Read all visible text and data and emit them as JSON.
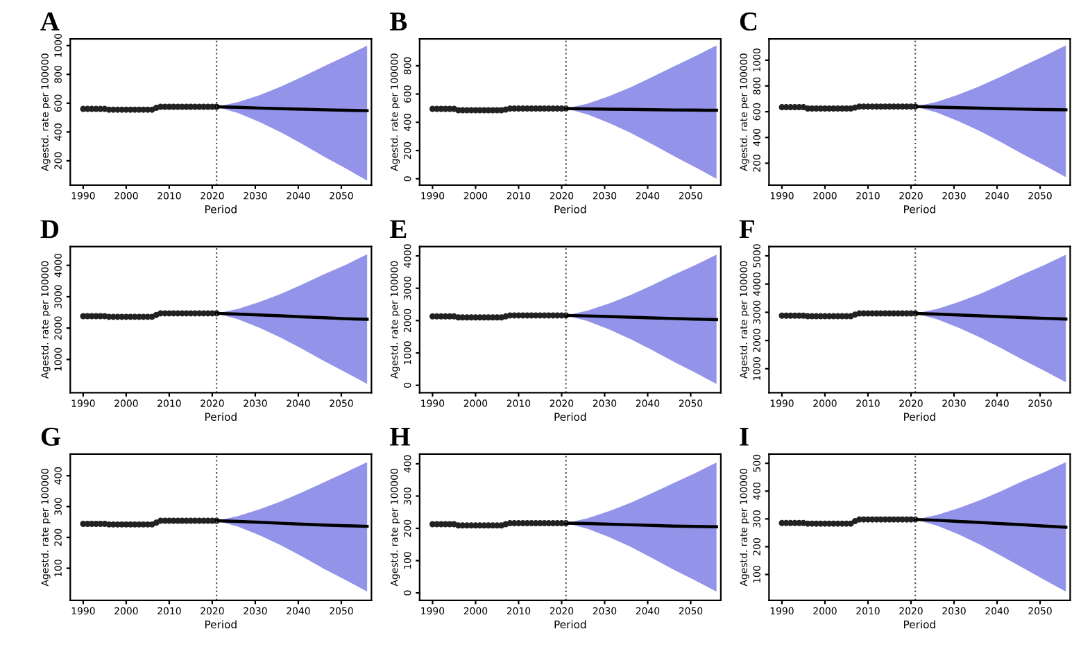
{
  "chart_data": [
    {
      "type": "line",
      "title": "A",
      "xlabel": "Period",
      "ylabel": "Agestd. rate per 100000",
      "xlim": [
        1987,
        2057
      ],
      "xticks": [
        1990,
        2000,
        2010,
        2020,
        2030,
        2040,
        2050
      ],
      "ylim": [
        31,
        1046
      ],
      "yticks": [
        200,
        400,
        600,
        800,
        1000
      ],
      "grid": false,
      "ref_lines": [
        {
          "axis": "x",
          "value": 2021,
          "line_style": "dotted",
          "color": "#555555"
        }
      ],
      "series": [
        {
          "type": "scatter",
          "marker": "circle",
          "color": "#222222",
          "x": [
            1990,
            1991,
            1992,
            1993,
            1994,
            1995,
            1996,
            1997,
            1998,
            1999,
            2000,
            2001,
            2002,
            2003,
            2004,
            2005,
            2006,
            2007,
            2008,
            2009,
            2010,
            2011,
            2012,
            2013,
            2014,
            2015,
            2016,
            2017,
            2018,
            2019,
            2020,
            2021
          ],
          "values": [
            560,
            560,
            560,
            560,
            560,
            560,
            555,
            555,
            555,
            555,
            555,
            555,
            555,
            555,
            555,
            555,
            555,
            568,
            575,
            575,
            575,
            575,
            575,
            575,
            575,
            575,
            575,
            575,
            575,
            575,
            575,
            575
          ]
        },
        {
          "marker": "none",
          "color": "#000000",
          "x": [
            2021,
            2026,
            2031,
            2036,
            2041,
            2046,
            2051,
            2056
          ],
          "values": [
            575,
            571,
            566,
            562,
            558,
            554,
            551,
            548
          ],
          "upper": [
            575,
            607,
            656,
            716,
            784,
            857,
            926,
            1000
          ],
          "lower": [
            575,
            532,
            469,
            397,
            315,
            228,
            148,
            62
          ]
        }
      ]
    },
    {
      "type": "line",
      "title": "B",
      "xlabel": "Period",
      "ylabel": "Agestd. rate per 100000",
      "xlim": [
        1987,
        2057
      ],
      "xticks": [
        1990,
        2000,
        2010,
        2020,
        2030,
        2040,
        2050
      ],
      "ylim": [
        -45,
        990
      ],
      "yticks": [
        0,
        200,
        400,
        600,
        800
      ],
      "grid": false,
      "ref_lines": [
        {
          "axis": "x",
          "value": 2021,
          "line_style": "dotted",
          "color": "#555555"
        }
      ],
      "series": [
        {
          "type": "scatter",
          "marker": "circle",
          "color": "#222222",
          "x": [
            1990,
            1991,
            1992,
            1993,
            1994,
            1995,
            1996,
            1997,
            1998,
            1999,
            2000,
            2001,
            2002,
            2003,
            2004,
            2005,
            2006,
            2007,
            2008,
            2009,
            2010,
            2011,
            2012,
            2013,
            2014,
            2015,
            2016,
            2017,
            2018,
            2019,
            2020,
            2021
          ],
          "values": [
            495,
            495,
            495,
            495,
            495,
            495,
            485,
            485,
            485,
            485,
            485,
            485,
            485,
            485,
            485,
            485,
            485,
            490,
            497,
            497,
            497,
            497,
            497,
            497,
            497,
            497,
            497,
            497,
            497,
            497,
            497,
            497
          ]
        },
        {
          "marker": "none",
          "color": "#000000",
          "x": [
            2021,
            2026,
            2031,
            2036,
            2041,
            2046,
            2051,
            2056
          ],
          "values": [
            497,
            495,
            493,
            491,
            489,
            487,
            486,
            485
          ],
          "upper": [
            497,
            532,
            585,
            647,
            719,
            795,
            867,
            944
          ],
          "lower": [
            497,
            456,
            396,
            326,
            246,
            162,
            83,
            0
          ]
        }
      ]
    },
    {
      "type": "line",
      "title": "C",
      "xlabel": "Period",
      "ylabel": "Agestd. rate per 100000",
      "xlim": [
        1987,
        2057
      ],
      "xticks": [
        1990,
        2000,
        2010,
        2020,
        2030,
        2040,
        2050
      ],
      "ylim": [
        30,
        1165
      ],
      "yticks": [
        200,
        400,
        600,
        800,
        1000
      ],
      "grid": false,
      "ref_lines": [
        {
          "axis": "x",
          "value": 2021,
          "line_style": "dotted",
          "color": "#555555"
        }
      ],
      "series": [
        {
          "type": "scatter",
          "marker": "circle",
          "color": "#222222",
          "x": [
            1990,
            1991,
            1992,
            1993,
            1994,
            1995,
            1996,
            1997,
            1998,
            1999,
            2000,
            2001,
            2002,
            2003,
            2004,
            2005,
            2006,
            2007,
            2008,
            2009,
            2010,
            2011,
            2012,
            2013,
            2014,
            2015,
            2016,
            2017,
            2018,
            2019,
            2020,
            2021
          ],
          "values": [
            635,
            635,
            635,
            635,
            635,
            635,
            625,
            625,
            625,
            625,
            625,
            625,
            625,
            625,
            625,
            625,
            625,
            632,
            640,
            640,
            640,
            640,
            640,
            640,
            640,
            640,
            640,
            640,
            640,
            640,
            640,
            640
          ]
        },
        {
          "marker": "none",
          "color": "#000000",
          "x": [
            2021,
            2026,
            2031,
            2036,
            2041,
            2046,
            2051,
            2056
          ],
          "values": [
            640,
            636,
            632,
            628,
            624,
            620,
            617,
            615
          ],
          "upper": [
            640,
            676,
            732,
            798,
            874,
            955,
            1032,
            1115
          ],
          "lower": [
            640,
            594,
            527,
            450,
            362,
            270,
            183,
            92
          ]
        }
      ]
    },
    {
      "type": "line",
      "title": "D",
      "xlabel": "Period",
      "ylabel": "Agestd. rate per 100000",
      "xlim": [
        1987,
        2057
      ],
      "xticks": [
        1990,
        2000,
        2010,
        2020,
        2030,
        2040,
        2050
      ],
      "ylim": [
        -60,
        4600
      ],
      "yticks": [
        1000,
        2000,
        3000,
        4000
      ],
      "grid": false,
      "ref_lines": [
        {
          "axis": "x",
          "value": 2021,
          "line_style": "dotted",
          "color": "#555555"
        }
      ],
      "series": [
        {
          "type": "scatter",
          "marker": "circle",
          "color": "#222222",
          "x": [
            1990,
            1991,
            1992,
            1993,
            1994,
            1995,
            1996,
            1997,
            1998,
            1999,
            2000,
            2001,
            2002,
            2003,
            2004,
            2005,
            2006,
            2007,
            2008,
            2009,
            2010,
            2011,
            2012,
            2013,
            2014,
            2015,
            2016,
            2017,
            2018,
            2019,
            2020,
            2021
          ],
          "values": [
            2380,
            2380,
            2380,
            2380,
            2380,
            2380,
            2360,
            2360,
            2360,
            2360,
            2360,
            2360,
            2360,
            2360,
            2360,
            2360,
            2360,
            2420,
            2470,
            2470,
            2470,
            2470,
            2470,
            2470,
            2470,
            2470,
            2470,
            2470,
            2470,
            2470,
            2470,
            2470
          ]
        },
        {
          "marker": "none",
          "color": "#000000",
          "x": [
            2021,
            2026,
            2031,
            2036,
            2041,
            2046,
            2051,
            2056
          ],
          "values": [
            2470,
            2445,
            2420,
            2390,
            2360,
            2330,
            2300,
            2280
          ],
          "upper": [
            2470,
            2611,
            2834,
            3094,
            3395,
            3717,
            4018,
            4350
          ],
          "lower": [
            2470,
            2280,
            2008,
            1690,
            1330,
            950,
            590,
            220
          ]
        }
      ]
    },
    {
      "type": "line",
      "title": "E",
      "xlabel": "Period",
      "ylabel": "Agestd. rate per 100000",
      "xlim": [
        1987,
        2057
      ],
      "xticks": [
        1990,
        2000,
        2010,
        2020,
        2030,
        2040,
        2050
      ],
      "ylim": [
        -230,
        4290
      ],
      "yticks": [
        0,
        1000,
        2000,
        3000,
        4000
      ],
      "grid": false,
      "ref_lines": [
        {
          "axis": "x",
          "value": 2021,
          "line_style": "dotted",
          "color": "#555555"
        }
      ],
      "series": [
        {
          "type": "scatter",
          "marker": "circle",
          "color": "#222222",
          "x": [
            1990,
            1991,
            1992,
            1993,
            1994,
            1995,
            1996,
            1997,
            1998,
            1999,
            2000,
            2001,
            2002,
            2003,
            2004,
            2005,
            2006,
            2007,
            2008,
            2009,
            2010,
            2011,
            2012,
            2013,
            2014,
            2015,
            2016,
            2017,
            2018,
            2019,
            2020,
            2021
          ],
          "values": [
            2130,
            2130,
            2130,
            2130,
            2130,
            2130,
            2100,
            2100,
            2100,
            2100,
            2100,
            2100,
            2100,
            2100,
            2100,
            2100,
            2100,
            2130,
            2160,
            2160,
            2160,
            2160,
            2160,
            2160,
            2160,
            2160,
            2160,
            2160,
            2160,
            2160,
            2160,
            2160
          ]
        },
        {
          "marker": "none",
          "color": "#000000",
          "x": [
            2021,
            2026,
            2031,
            2036,
            2041,
            2046,
            2051,
            2056
          ],
          "values": [
            2160,
            2145,
            2125,
            2105,
            2085,
            2065,
            2045,
            2030
          ],
          "upper": [
            2160,
            2306,
            2527,
            2788,
            3090,
            3412,
            3713,
            4040
          ],
          "lower": [
            2160,
            1986,
            1727,
            1428,
            1090,
            732,
            393,
            40
          ]
        }
      ]
    },
    {
      "type": "line",
      "title": "F",
      "xlabel": "Period",
      "ylabel": "Agestd. rate per 100000",
      "xlim": [
        1987,
        2057
      ],
      "xticks": [
        1990,
        2000,
        2010,
        2020,
        2030,
        2040,
        2050
      ],
      "ylim": [
        150,
        5330
      ],
      "yticks": [
        1000,
        2000,
        3000,
        4000,
        5000
      ],
      "grid": false,
      "ref_lines": [
        {
          "axis": "x",
          "value": 2021,
          "line_style": "dotted",
          "color": "#555555"
        }
      ],
      "series": [
        {
          "type": "scatter",
          "marker": "circle",
          "color": "#222222",
          "x": [
            1990,
            1991,
            1992,
            1993,
            1994,
            1995,
            1996,
            1997,
            1998,
            1999,
            2000,
            2001,
            2002,
            2003,
            2004,
            2005,
            2006,
            2007,
            2008,
            2009,
            2010,
            2011,
            2012,
            2013,
            2014,
            2015,
            2016,
            2017,
            2018,
            2019,
            2020,
            2021
          ],
          "values": [
            2880,
            2880,
            2880,
            2880,
            2880,
            2880,
            2860,
            2860,
            2860,
            2860,
            2860,
            2860,
            2860,
            2860,
            2860,
            2860,
            2860,
            2920,
            2960,
            2960,
            2960,
            2960,
            2960,
            2960,
            2960,
            2960,
            2960,
            2960,
            2960,
            2960,
            2960,
            2960
          ]
        },
        {
          "marker": "none",
          "color": "#000000",
          "x": [
            2021,
            2026,
            2031,
            2036,
            2041,
            2046,
            2051,
            2056
          ],
          "values": [
            2960,
            2935,
            2905,
            2875,
            2845,
            2815,
            2785,
            2760
          ],
          "upper": [
            2960,
            3117,
            3361,
            3650,
            3985,
            4343,
            4677,
            5040
          ],
          "lower": [
            2960,
            2756,
            2457,
            2113,
            1725,
            1314,
            926,
            520
          ]
        }
      ]
    },
    {
      "type": "line",
      "title": "G",
      "xlabel": "Period",
      "ylabel": "Agestd. rate per 100000",
      "xlim": [
        1987,
        2057
      ],
      "xticks": [
        1990,
        2000,
        2010,
        2020,
        2030,
        2040,
        2050
      ],
      "ylim": [
        -4,
        470
      ],
      "yticks": [
        100,
        200,
        300,
        400
      ],
      "grid": false,
      "ref_lines": [
        {
          "axis": "x",
          "value": 2021,
          "line_style": "dotted",
          "color": "#555555"
        }
      ],
      "series": [
        {
          "type": "scatter",
          "marker": "circle",
          "color": "#222222",
          "x": [
            1990,
            1991,
            1992,
            1993,
            1994,
            1995,
            1996,
            1997,
            1998,
            1999,
            2000,
            2001,
            2002,
            2003,
            2004,
            2005,
            2006,
            2007,
            2008,
            2009,
            2010,
            2011,
            2012,
            2013,
            2014,
            2015,
            2016,
            2017,
            2018,
            2019,
            2020,
            2021
          ],
          "values": [
            244,
            244,
            244,
            244,
            244,
            244,
            242,
            242,
            242,
            242,
            242,
            242,
            242,
            242,
            242,
            242,
            242,
            248,
            254,
            254,
            254,
            254,
            254,
            254,
            254,
            254,
            254,
            254,
            254,
            254,
            254,
            254
          ]
        },
        {
          "marker": "none",
          "color": "#000000",
          "x": [
            2021,
            2026,
            2031,
            2036,
            2041,
            2046,
            2051,
            2056
          ],
          "values": [
            254,
            252,
            249,
            246,
            243,
            240,
            238,
            236
          ],
          "upper": [
            254,
            269,
            291,
            317,
            347,
            379,
            411,
            444
          ],
          "lower": [
            254,
            235,
            207,
            174,
            137,
            98,
            62,
            24
          ]
        }
      ]
    },
    {
      "type": "line",
      "title": "H",
      "xlabel": "Period",
      "ylabel": "Agestd. rate per 100000",
      "xlim": [
        1987,
        2057
      ],
      "xticks": [
        1990,
        2000,
        2010,
        2020,
        2030,
        2040,
        2050
      ],
      "ylim": [
        -23,
        430
      ],
      "yticks": [
        0,
        100,
        200,
        300,
        400
      ],
      "grid": false,
      "ref_lines": [
        {
          "axis": "x",
          "value": 2021,
          "line_style": "dotted",
          "color": "#555555"
        }
      ],
      "series": [
        {
          "type": "scatter",
          "marker": "circle",
          "color": "#222222",
          "x": [
            1990,
            1991,
            1992,
            1993,
            1994,
            1995,
            1996,
            1997,
            1998,
            1999,
            2000,
            2001,
            2002,
            2003,
            2004,
            2005,
            2006,
            2007,
            2008,
            2009,
            2010,
            2011,
            2012,
            2013,
            2014,
            2015,
            2016,
            2017,
            2018,
            2019,
            2020,
            2021
          ],
          "values": [
            213,
            213,
            213,
            213,
            213,
            213,
            209,
            209,
            209,
            209,
            209,
            209,
            209,
            209,
            209,
            209,
            209,
            213,
            216,
            216,
            216,
            216,
            216,
            216,
            216,
            216,
            216,
            216,
            216,
            216,
            216,
            216
          ]
        },
        {
          "marker": "none",
          "color": "#000000",
          "x": [
            2021,
            2026,
            2031,
            2036,
            2041,
            2046,
            2051,
            2056
          ],
          "values": [
            216,
            215,
            213,
            211,
            209,
            207,
            206,
            205
          ],
          "upper": [
            216,
            231,
            253,
            279,
            309,
            340,
            371,
            404
          ],
          "lower": [
            216,
            199,
            173,
            143,
            108,
            72,
            39,
            4
          ]
        }
      ]
    },
    {
      "type": "line",
      "title": "I",
      "xlabel": "Period",
      "ylabel": "Agestd. rate per 100000",
      "xlim": [
        1987,
        2057
      ],
      "xticks": [
        1990,
        2000,
        2010,
        2020,
        2030,
        2040,
        2050
      ],
      "ylim": [
        7,
        533
      ],
      "yticks": [
        100,
        200,
        300,
        400,
        500
      ],
      "grid": false,
      "ref_lines": [
        {
          "axis": "x",
          "value": 2021,
          "line_style": "dotted",
          "color": "#555555"
        }
      ],
      "series": [
        {
          "type": "scatter",
          "marker": "circle",
          "color": "#222222",
          "x": [
            1990,
            1991,
            1992,
            1993,
            1994,
            1995,
            1996,
            1997,
            1998,
            1999,
            2000,
            2001,
            2002,
            2003,
            2004,
            2005,
            2006,
            2007,
            2008,
            2009,
            2010,
            2011,
            2012,
            2013,
            2014,
            2015,
            2016,
            2017,
            2018,
            2019,
            2020,
            2021
          ],
          "values": [
            285,
            285,
            285,
            285,
            285,
            285,
            283,
            283,
            283,
            283,
            283,
            283,
            283,
            283,
            283,
            283,
            283,
            292,
            298,
            298,
            298,
            298,
            298,
            298,
            298,
            298,
            298,
            298,
            298,
            298,
            298,
            298
          ]
        },
        {
          "marker": "none",
          "color": "#000000",
          "x": [
            2021,
            2026,
            2031,
            2036,
            2041,
            2046,
            2051,
            2056
          ],
          "values": [
            298,
            295,
            291,
            287,
            283,
            279,
            274,
            270
          ],
          "upper": [
            298,
            314,
            338,
            367,
            400,
            436,
            468,
            504
          ],
          "lower": [
            298,
            276,
            245,
            208,
            167,
            124,
            81,
            38
          ]
        }
      ]
    }
  ]
}
